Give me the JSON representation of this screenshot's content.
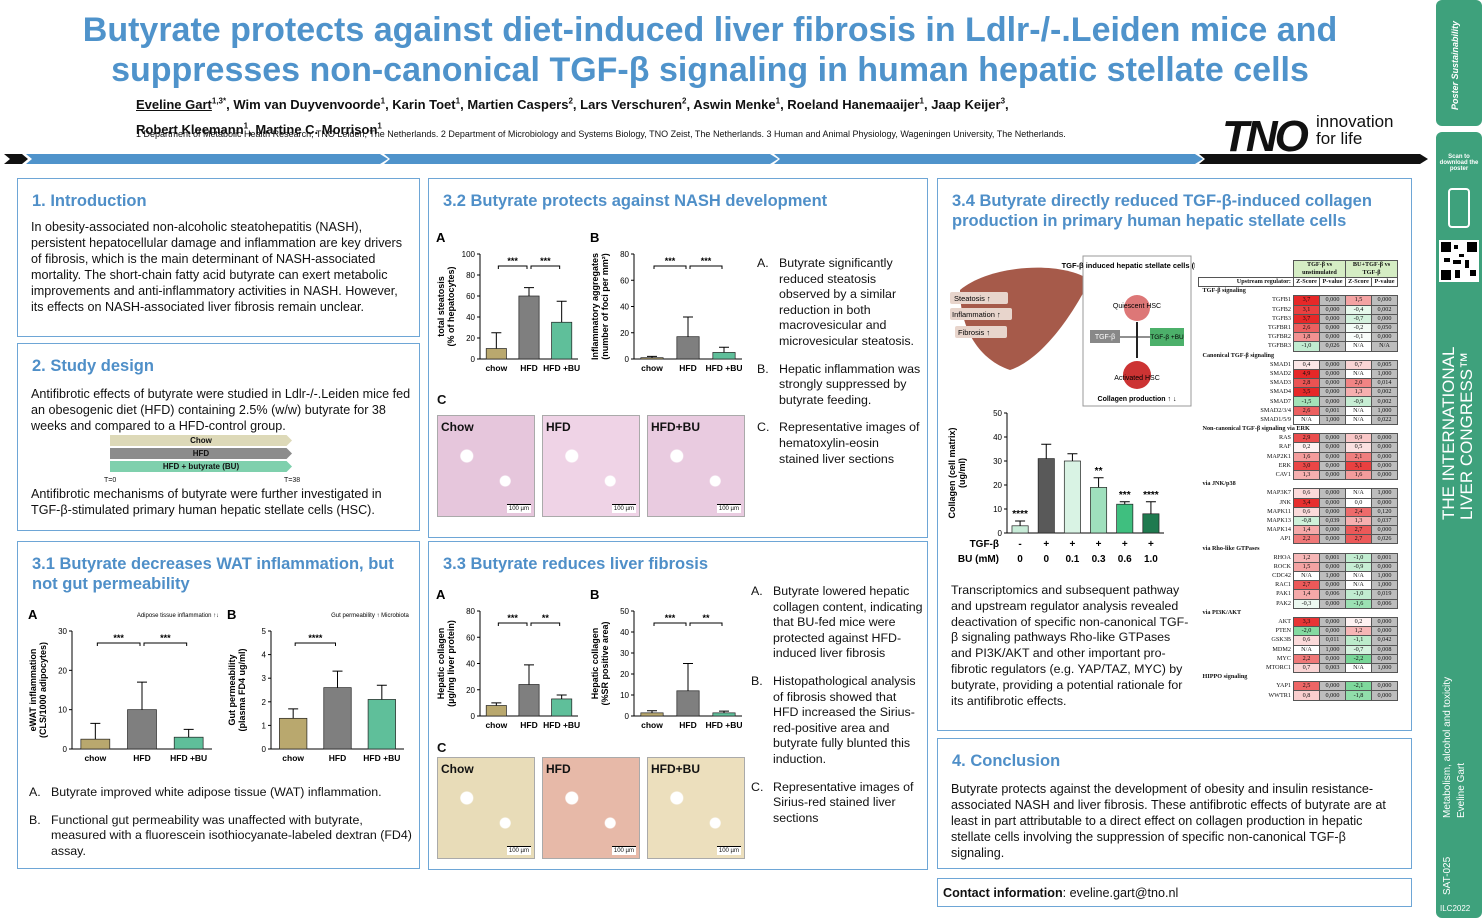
{
  "header": {
    "title": "Butyrate protects against diet-induced liver fibrosis in Ldlr-/-.Leiden mice and suppresses non-canonical TGF-β signaling in human hepatic stellate cells",
    "authors": [
      {
        "name": "Eveline Gart",
        "aff": "1,3*"
      },
      {
        "name": "Wim van Duyvenvoorde",
        "aff": "1"
      },
      {
        "name": "Karin Toet",
        "aff": "1"
      },
      {
        "name": "Martien Caspers",
        "aff": "2"
      },
      {
        "name": "Lars Verschuren",
        "aff": "2"
      },
      {
        "name": "Aswin Menke",
        "aff": "1"
      },
      {
        "name": "Roeland Hanemaaijer",
        "aff": "1"
      },
      {
        "name": "Jaap Keijer",
        "aff": "3"
      },
      {
        "name": "Robert Kleemann",
        "aff": "1"
      },
      {
        "name": "Martine C. Morrison",
        "aff": "1"
      }
    ],
    "affiliations": "1 Department of Metabolic Health Research, TNO Leiden, The Netherlands. 2 Department of Microbiology and Systems Biology, TNO Zeist, The Netherlands. 3 Human and Animal Physiology, Wageningen University, The Netherlands.",
    "logo": "TNO",
    "tagline": [
      "innovation",
      "for life"
    ]
  },
  "intro": {
    "heading": "1. Introduction",
    "text": "In obesity-associated non-alcoholic steatohepatitis (NASH), persistent hepatocellular damage and inflammation are key drivers of fibrosis, which is the main determinant of NASH-associated mortality. The short-chain fatty acid butyrate can exert metabolic improvements and anti-inflammatory activities in NASH. However, its effects on NASH-associated liver fibrosis remain unclear."
  },
  "design": {
    "heading": "2. Study design",
    "text1": "Antifibrotic effects of butyrate were studied in Ldlr-/-.Leiden mice fed an obesogenic diet (HFD) containing 2.5% (w/w) butyrate for 38 weeks and compared to a HFD-control group.",
    "groups": [
      "Chow",
      "HFD",
      "HFD + butyrate (BU)"
    ],
    "t_start": "T=0",
    "t_end": "T=38",
    "text2": "Antifibrotic mechanisms of butyrate were further investigated in TGF-β-stimulated primary human hepatic stellate cells (HSC)."
  },
  "wat": {
    "heading": "3.1 Butyrate decreases WAT inflammation, but not gut permeability",
    "notes": [
      {
        "label": "A.",
        "text": "Butyrate improved white adipose tissue (WAT) inflammation."
      },
      {
        "label": "B.",
        "text": "Functional gut permeability was unaffected with butyrate, measured with a fluorescein isothiocyanate-labeled dextran (FD4) assay."
      }
    ]
  },
  "nash": {
    "heading": "3.2 Butyrate protects against NASH development",
    "panel_c": "C",
    "images": [
      "Chow",
      "HFD",
      "HFD+BU"
    ],
    "scale": "100 µm",
    "notes": [
      {
        "label": "A.",
        "text": "Butyrate significantly reduced steatosis observed by a similar reduction in both macrovesicular and microvesicular steatosis."
      },
      {
        "label": "B.",
        "text": "Hepatic inflammation was strongly suppressed by butyrate feeding."
      },
      {
        "label": "C.",
        "text": "Representative images of hematoxylin-eosin stained liver sections"
      }
    ]
  },
  "fibrosis": {
    "heading": "3.3 Butyrate reduces liver fibrosis",
    "panel_c": "C",
    "images": [
      "Chow",
      "HFD",
      "HFD+BU"
    ],
    "scale": "100 µm",
    "notes": [
      {
        "label": "A.",
        "text": "Butyrate lowered hepatic collagen content, indicating that BU-fed mice were protected against HFD-induced liver fibrosis"
      },
      {
        "label": "B.",
        "text": "Histopathological analysis of fibrosis showed that HFD increased the Sirius-red-positive area and butyrate fully blunted this induction."
      },
      {
        "label": "C.",
        "text": "Representative images of Sirius-red stained liver sections"
      }
    ]
  },
  "hsc": {
    "heading": "3.4 Butyrate directly reduced TGF-β-induced collagen production in primary human hepatic stellate cells",
    "liver": [
      "Steatosis ↑",
      "Inflammation ↑",
      "Fibrosis ↑"
    ],
    "box_title": "TGF-β induced hepatic stellate cells (HSC)",
    "quiescent": "Quiescent HSC",
    "tgf": "TGF-β",
    "tgf_bu": "TGF-β +BU",
    "activated": "Activated HSC",
    "collagen": "Collagen production ↑ ↓",
    "text": "Transcriptomics and subsequent pathway and upstream regulator analysis revealed deactivation of specific non-canonical TGF-β signaling pathways Rho-like GTPases and PI3K/AKT and other important pro-fibrotic regulators (e.g. YAP/TAZ, MYC) by butyrate, providing a potential rationale for its antifibrotic effects."
  },
  "heatmap": {
    "groups": [
      "TGF-β vs unstimulated",
      "BU+TGF-β vs TGF-β"
    ],
    "columns": [
      "Upstream regulator:",
      "Z-Score",
      "P-value",
      "Z-Score",
      "P-value"
    ],
    "sections": [
      {
        "name": "TGF-β signaling",
        "rows": [
          [
            "TGFB1",
            "3,7",
            "0,000",
            "1,5",
            "0,000"
          ],
          [
            "TGFB2",
            "3,1",
            "0,000",
            "-0,4",
            "0,002"
          ],
          [
            "TGFB3",
            "3,7",
            "0,000",
            "-0,7",
            "0,000"
          ],
          [
            "TGFBR1",
            "2,6",
            "0,000",
            "-0,2",
            "0,050"
          ],
          [
            "TGFBR2",
            "1,8",
            "0,000",
            "-0,1",
            "0,000"
          ],
          [
            "TGFBR3",
            "-1,0",
            "0,026",
            "N/A",
            "N/A"
          ]
        ]
      },
      {
        "name": "Canonical TGF-β signaling",
        "rows": [
          [
            "SMAD1",
            "0,4",
            "0,000",
            "0,7",
            "0,005"
          ],
          [
            "SMAD2",
            "4,9",
            "0,000",
            "N/A",
            "1,000"
          ],
          [
            "SMAD3",
            "2,8",
            "0,000",
            "2,0",
            "0,014"
          ],
          [
            "SMAD4",
            "3,5",
            "0,000",
            "1,3",
            "0,002"
          ],
          [
            "SMAD7",
            "-1,5",
            "0,000",
            "-0,9",
            "0,002"
          ],
          [
            "SMAD2/3/4",
            "2,6",
            "0,001",
            "N/A",
            "1,000"
          ],
          [
            "SMAD1/5/9",
            "N/A",
            "1,000",
            "N/A",
            "0,022"
          ]
        ]
      },
      {
        "name": "Non-canonical TGF-β signaling via ERK",
        "rows": [
          [
            "RAS",
            "2,9",
            "0,000",
            "0,9",
            "0,000"
          ],
          [
            "RAF",
            "0,2",
            "0,000",
            "0,5",
            "0,000"
          ],
          [
            "MAP2K1",
            "1,6",
            "0,000",
            "2,1",
            "0,000"
          ],
          [
            "ERK",
            "3,0",
            "0,000",
            "3,1",
            "0,000"
          ],
          [
            "CAV1",
            "1,3",
            "0,000",
            "1,6",
            "0,000"
          ]
        ]
      },
      {
        "name": "via JNK/p38",
        "rows": [
          [
            "MAP3K7",
            "0,6",
            "0,000",
            "N/A",
            "1,000"
          ],
          [
            "JNK",
            "3,4",
            "0,000",
            "0,0",
            "0,000"
          ],
          [
            "MAPK11",
            "0,6",
            "0,000",
            "2,4",
            "0,120"
          ],
          [
            "MAPK13",
            "-0,8",
            "0,039",
            "1,3",
            "0,037"
          ],
          [
            "MAPK14",
            "1,4",
            "0,000",
            "2,7",
            "0,000"
          ],
          [
            "AP1",
            "2,2",
            "0,000",
            "2,7",
            "0,026"
          ]
        ]
      },
      {
        "name": "via Rho-like GTPases",
        "rows": [
          [
            "RHOA",
            "1,2",
            "0,001",
            "-1,0",
            "0,001"
          ],
          [
            "ROCK",
            "1,5",
            "0,000",
            "-0,9",
            "0,000"
          ],
          [
            "CDC42",
            "N/A",
            "1,000",
            "N/A",
            "1,000"
          ],
          [
            "RAC1",
            "2,7",
            "0,000",
            "N/A",
            "1,000"
          ],
          [
            "PAK1",
            "1,4",
            "0,006",
            "-1,0",
            "0,019"
          ],
          [
            "PAK2",
            "-0,3",
            "0,000",
            "-1,6",
            "0,006"
          ]
        ]
      },
      {
        "name": "via PI3K/AKT",
        "rows": [
          [
            "AKT",
            "3,3",
            "0,000",
            "0,2",
            "0,000"
          ],
          [
            "PTEN",
            "-2,0",
            "0,000",
            "1,2",
            "0,000"
          ],
          [
            "GSK3B",
            "0,6",
            "0,011",
            "-1,1",
            "0,042"
          ],
          [
            "MDM2",
            "N/A",
            "1,000",
            "-0,7",
            "0,008"
          ],
          [
            "MYC",
            "2,2",
            "0,000",
            "-2,2",
            "0,000"
          ],
          [
            "MTORC1",
            "0,7",
            "0,003",
            "N/A",
            "1,000"
          ]
        ]
      },
      {
        "name": "HIPPO signaling",
        "rows": [
          [
            "YAP1",
            "2,5",
            "0,000",
            "-2,1",
            "0,000"
          ],
          [
            "WWTR1",
            "0,8",
            "0,000",
            "-1,8",
            "0,000"
          ]
        ]
      }
    ]
  },
  "conclusion": {
    "heading": "4. Conclusion",
    "text": "Butyrate protects against the development of obesity and insulin resistance-associated NASH and liver fibrosis. These antifibrotic effects of butyrate are at least in part attributable to a direct effect on collagen production in hepatic stellate cells involving the suppression of specific non-canonical TGF-β signaling."
  },
  "contact": {
    "label": "Contact information",
    "text": ": eveline.gart@tno.nl"
  },
  "sidebar": {
    "brand": "Poster Sustainability",
    "scan": "Scan to download the poster",
    "congress": "THE INTERNATIONAL LIVER CONGRESS™",
    "topic": "Metabolism, alcohol and toxicity",
    "presenter": "Eveline Gart",
    "code": "SAT-025",
    "event": "ILC2022"
  },
  "chart_data": [
    {
      "type": "bar",
      "label": "A",
      "ylabel": [
        "eWAT inflammation",
        "(CLS/1000 adipocytes)"
      ],
      "inset": "Adipose tissue inflammation ↑↓",
      "categories": [
        "chow",
        "HFD",
        "HFD +BU"
      ],
      "values": [
        2.5,
        10,
        3
      ],
      "errors": [
        4,
        7,
        2
      ],
      "colors": [
        "#b9a86e",
        "#7f7f7f",
        "#5fbf9a"
      ],
      "ylim": [
        0,
        30
      ],
      "yticks": [
        0,
        10,
        20,
        30
      ],
      "significance": [
        "***",
        "***"
      ]
    },
    {
      "type": "bar",
      "label": "B",
      "ylabel": [
        "Gut permeability",
        "(plasma FD4 ug/ml)"
      ],
      "inset": "Gut permeability ↑ Microbiota",
      "categories": [
        "chow",
        "HFD",
        "HFD +BU"
      ],
      "values": [
        1.3,
        2.6,
        2.1
      ],
      "errors": [
        0.4,
        0.7,
        0.6
      ],
      "colors": [
        "#b9a86e",
        "#7f7f7f",
        "#5fbf9a"
      ],
      "ylim": [
        0,
        5
      ],
      "yticks": [
        0,
        1,
        2,
        3,
        4,
        5
      ],
      "significance": [
        "****"
      ]
    },
    {
      "type": "bar",
      "label": "A",
      "ylabel": [
        "total steatosis",
        "(% of hepatocytes)"
      ],
      "categories": [
        "chow",
        "HFD",
        "HFD +BU"
      ],
      "values": [
        10,
        60,
        35
      ],
      "errors": [
        15,
        8,
        20
      ],
      "colors": [
        "#b9a86e",
        "#7f7f7f",
        "#5fbf9a"
      ],
      "ylim": [
        0,
        100
      ],
      "yticks": [
        0,
        20,
        40,
        60,
        80,
        100
      ],
      "significance": [
        "***",
        "***"
      ]
    },
    {
      "type": "bar",
      "label": "B",
      "ylabel": [
        "Inflammatory aggregates",
        "(number of foci per mm²)"
      ],
      "categories": [
        "chow",
        "HFD",
        "HFD +BU"
      ],
      "values": [
        1,
        17,
        5
      ],
      "errors": [
        1,
        15,
        4
      ],
      "colors": [
        "#b9a86e",
        "#7f7f7f",
        "#5fbf9a"
      ],
      "ylim": [
        0,
        80
      ],
      "yticks": [
        0,
        20,
        40,
        60,
        80
      ],
      "significance": [
        "***",
        "***"
      ]
    },
    {
      "type": "bar",
      "label": "A",
      "ylabel": [
        "Hepatic collagen",
        "(µg/mg liver protein)"
      ],
      "categories": [
        "chow",
        "HFD",
        "HFD +BU"
      ],
      "values": [
        8,
        24,
        13
      ],
      "errors": [
        2,
        15,
        3
      ],
      "colors": [
        "#b9a86e",
        "#7f7f7f",
        "#5fbf9a"
      ],
      "ylim": [
        0,
        80
      ],
      "yticks": [
        0,
        20,
        40,
        60,
        80
      ],
      "significance": [
        "***",
        "**"
      ]
    },
    {
      "type": "bar",
      "label": "B",
      "ylabel": [
        "Hepatic collagen",
        "(%SR positive area)"
      ],
      "categories": [
        "chow",
        "HFD",
        "HFD +BU"
      ],
      "values": [
        1.5,
        12,
        1.5
      ],
      "errors": [
        1,
        13,
        0.8
      ],
      "colors": [
        "#b9a86e",
        "#7f7f7f",
        "#5fbf9a"
      ],
      "ylim": [
        0,
        50
      ],
      "yticks": [
        0,
        10,
        20,
        30,
        40,
        50
      ],
      "significance": [
        "***",
        "**"
      ]
    },
    {
      "type": "bar",
      "ylabel": [
        "Collagen (cell matrix)",
        "(ug/ml)"
      ],
      "category_rows": [
        {
          "name": "TGF-β",
          "labels": [
            "-",
            "+",
            "+",
            "+",
            "+",
            "+"
          ]
        },
        {
          "name": "BU (mM)",
          "labels": [
            "0",
            "0",
            "0.1",
            "0.3",
            "0.6",
            "1.0"
          ]
        }
      ],
      "values": [
        3,
        31,
        30,
        19,
        12,
        8
      ],
      "errors": [
        2,
        6,
        3,
        4,
        1,
        5
      ],
      "colors": [
        "#c8ecd8",
        "#595959",
        "#d9f3e4",
        "#9fe0bd",
        "#3fbf7f",
        "#1f7a4f"
      ],
      "ylim": [
        0,
        50
      ],
      "yticks": [
        0,
        10,
        20,
        30,
        40,
        50
      ],
      "bar_annotations": [
        "****",
        null,
        null,
        "**",
        "***",
        "****"
      ]
    }
  ]
}
